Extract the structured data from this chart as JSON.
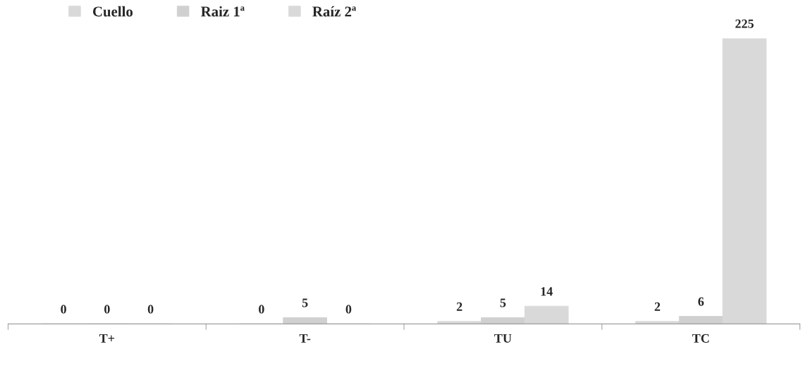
{
  "chart_data": {
    "type": "bar",
    "categories": [
      "T+",
      "T-",
      "TU",
      "TC"
    ],
    "series": [
      {
        "name": "Cuello",
        "color": "#d9d9d9",
        "values": [
          0,
          0,
          2,
          2
        ]
      },
      {
        "name": "Raiz 1ª",
        "color": "#d0d0d0",
        "values": [
          0,
          5,
          5,
          6
        ]
      },
      {
        "name": "Raíz 2ª",
        "color": "#d9d9d9",
        "values": [
          0,
          0,
          14,
          225
        ]
      }
    ],
    "data_labels": true,
    "legend": "top left",
    "grid": false
  }
}
